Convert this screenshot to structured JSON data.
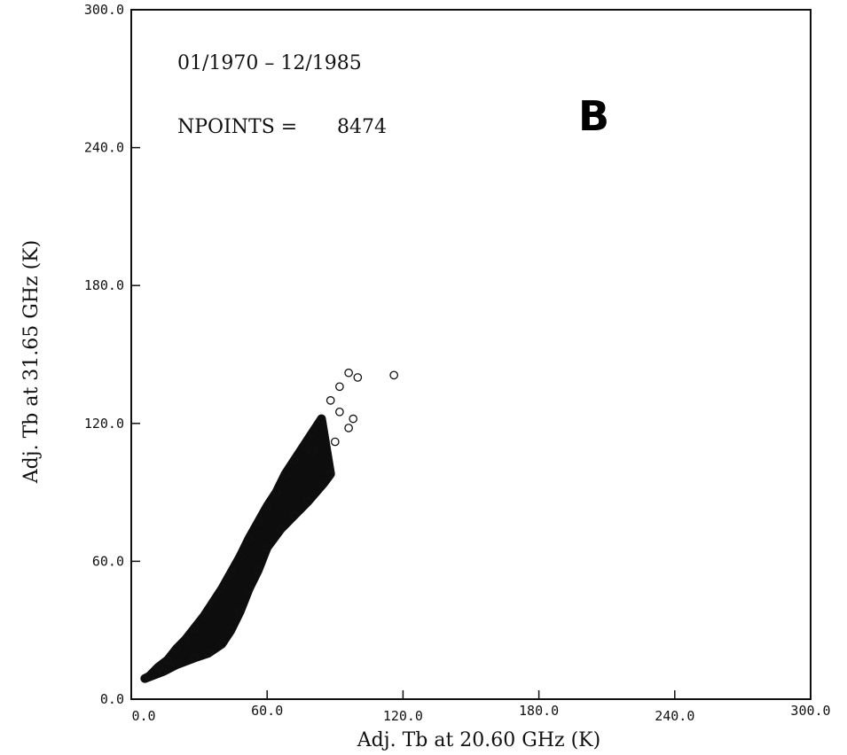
{
  "chart_data": {
    "type": "scatter",
    "title": "",
    "panel_label": "B",
    "annotations": {
      "date_range": "01/1970 – 12/1985",
      "npoints_label": "NPOINTS =",
      "npoints_value": "8474"
    },
    "xlabel": "Adj. Tb at 20.60 GHz (K)",
    "ylabel": "Adj. Tb at 31.65 GHz (K)",
    "xlim": [
      0,
      300
    ],
    "ylim": [
      0,
      300
    ],
    "x_ticks": [
      "0.0",
      "60.0",
      "120.0",
      "180.0",
      "240.0",
      "300.0"
    ],
    "y_ticks": [
      "0.0",
      "60.0",
      "120.0",
      "180.0",
      "240.0",
      "300.0"
    ],
    "grid": false,
    "marker": "open-circle",
    "points": [
      {
        "x": 8,
        "y": 10
      },
      {
        "x": 12,
        "y": 14
      },
      {
        "x": 16,
        "y": 17
      },
      {
        "x": 20,
        "y": 22
      },
      {
        "x": 24,
        "y": 26
      },
      {
        "x": 28,
        "y": 31
      },
      {
        "x": 32,
        "y": 36
      },
      {
        "x": 36,
        "y": 42
      },
      {
        "x": 40,
        "y": 48
      },
      {
        "x": 44,
        "y": 55
      },
      {
        "x": 48,
        "y": 62
      },
      {
        "x": 52,
        "y": 70
      },
      {
        "x": 56,
        "y": 77
      },
      {
        "x": 60,
        "y": 84
      },
      {
        "x": 64,
        "y": 90
      },
      {
        "x": 68,
        "y": 98
      },
      {
        "x": 72,
        "y": 104
      },
      {
        "x": 76,
        "y": 110
      },
      {
        "x": 80,
        "y": 116
      },
      {
        "x": 84,
        "y": 122
      },
      {
        "x": 88,
        "y": 130
      },
      {
        "x": 92,
        "y": 136
      },
      {
        "x": 96,
        "y": 142
      },
      {
        "x": 100,
        "y": 140
      },
      {
        "x": 116,
        "y": 141
      },
      {
        "x": 92,
        "y": 125
      },
      {
        "x": 96,
        "y": 118
      },
      {
        "x": 98,
        "y": 122
      },
      {
        "x": 90,
        "y": 112
      },
      {
        "x": 88,
        "y": 98
      },
      {
        "x": 85,
        "y": 94
      },
      {
        "x": 80,
        "y": 108
      },
      {
        "x": 78,
        "y": 86
      },
      {
        "x": 72,
        "y": 80
      },
      {
        "x": 66,
        "y": 74
      },
      {
        "x": 60,
        "y": 66
      },
      {
        "x": 56,
        "y": 56
      },
      {
        "x": 52,
        "y": 48
      },
      {
        "x": 48,
        "y": 38
      },
      {
        "x": 44,
        "y": 30
      },
      {
        "x": 40,
        "y": 24
      },
      {
        "x": 34,
        "y": 20
      },
      {
        "x": 28,
        "y": 18
      },
      {
        "x": 20,
        "y": 15
      },
      {
        "x": 14,
        "y": 12
      },
      {
        "x": 6,
        "y": 9
      }
    ]
  }
}
